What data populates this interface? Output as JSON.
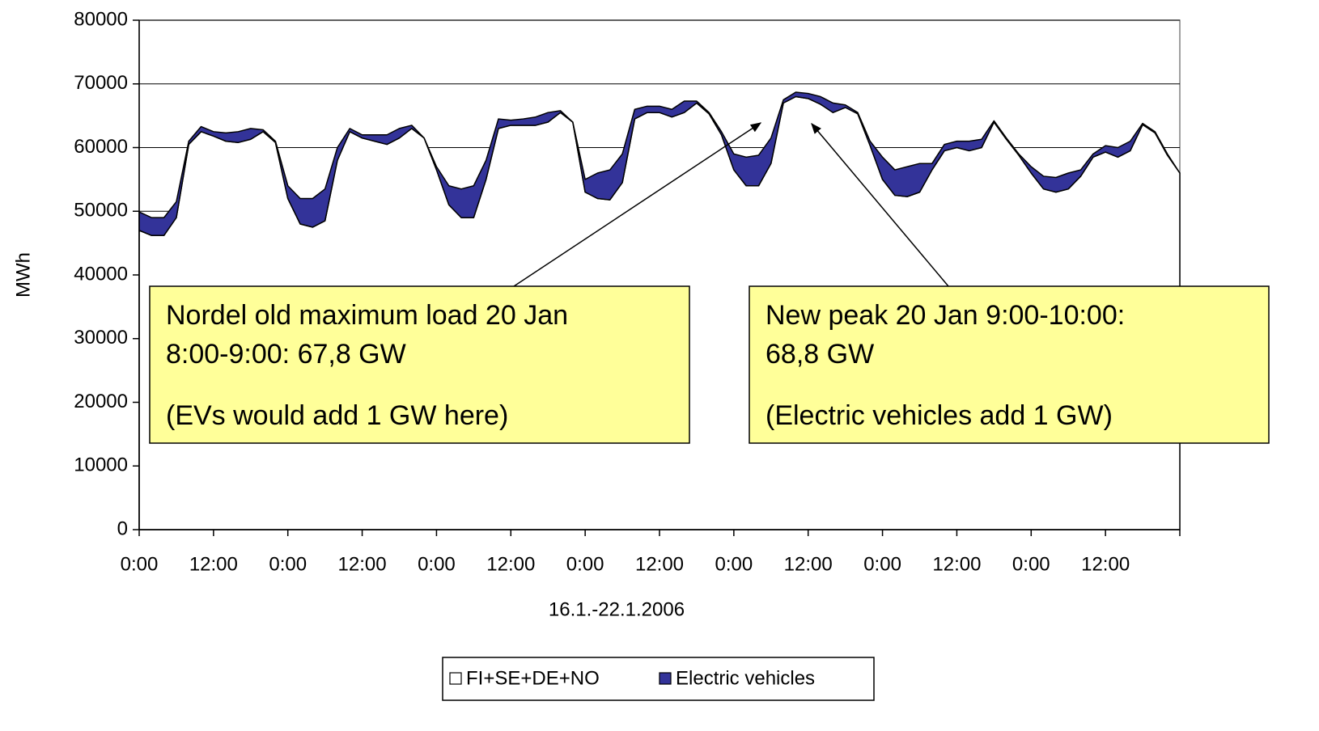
{
  "chart_data": {
    "type": "stacked-area",
    "x_label": "16.1.-22.1.2006",
    "y_label": "MWh",
    "categories": [
      "0:00",
      null,
      null,
      null,
      null,
      null,
      "12:00",
      null,
      null,
      null,
      null,
      null,
      "0:00",
      null,
      null,
      null,
      null,
      null,
      "12:00",
      null,
      null,
      null,
      null,
      null,
      "0:00",
      null,
      null,
      null,
      null,
      null,
      "12:00",
      null,
      null,
      null,
      null,
      null,
      "0:00",
      null,
      null,
      null,
      null,
      null,
      "12:00",
      null,
      null,
      null,
      null,
      null,
      "0:00",
      null,
      null,
      null,
      null,
      null,
      "12:00",
      null,
      null,
      null,
      null,
      null,
      "0:00",
      null,
      null,
      null,
      null,
      null,
      "12:00",
      null,
      null,
      null,
      null,
      null,
      "0:00",
      null,
      null,
      null,
      null,
      null,
      "12:00",
      null,
      null,
      null,
      null,
      null,
      null
    ],
    "series": [
      {
        "name": "FI+SE+DE+NO",
        "color": "#ffffff",
        "values": [
          47000,
          46200,
          46200,
          49000,
          60500,
          62500,
          61800,
          61000,
          60800,
          61300,
          62500,
          60800,
          52000,
          48000,
          47500,
          48500,
          58000,
          62500,
          61500,
          61000,
          60500,
          61500,
          63000,
          61500,
          56500,
          51000,
          49000,
          49000,
          55000,
          63000,
          63500,
          63500,
          63500,
          64000,
          65500,
          64000,
          53000,
          52000,
          51800,
          54500,
          64500,
          65500,
          65500,
          64800,
          65500,
          67000,
          65300,
          62000,
          56500,
          54000,
          54000,
          57500,
          67000,
          68000,
          67700,
          66800,
          65500,
          66300,
          65300,
          60300,
          55000,
          52500,
          52300,
          53000,
          56500,
          59500,
          60000,
          59500,
          60000,
          64000,
          61300,
          58800,
          56000,
          53500,
          53000,
          53500,
          55500,
          58500,
          59300,
          58500,
          59500,
          63600,
          62300,
          58800,
          56000
        ]
      },
      {
        "name": "Electric vehicles",
        "color": "#333399",
        "values": [
          2900,
          2800,
          2800,
          2500,
          500,
          800,
          700,
          1300,
          1700,
          1700,
          300,
          200,
          2000,
          4000,
          4500,
          5000,
          2000,
          500,
          500,
          1000,
          1500,
          1500,
          500,
          0,
          500,
          3000,
          4500,
          5000,
          3000,
          1500,
          800,
          1000,
          1300,
          1500,
          300,
          0,
          2000,
          4000,
          4700,
          4500,
          1500,
          1000,
          1000,
          1200,
          1800,
          300,
          200,
          500,
          2500,
          4500,
          4800,
          4000,
          500,
          700,
          800,
          1200,
          1500,
          400,
          200,
          700,
          3500,
          4000,
          4700,
          4500,
          1000,
          1000,
          1000,
          1500,
          1300,
          200,
          200,
          200,
          1000,
          2000,
          2300,
          2500,
          1000,
          500,
          1000,
          1500,
          1500,
          200,
          200,
          200,
          0
        ]
      }
    ],
    "ylim": [
      0,
      80000
    ],
    "yticks": [
      0,
      10000,
      20000,
      30000,
      40000,
      50000,
      60000,
      70000,
      80000
    ],
    "grid": true,
    "legend": "bottom",
    "annotations": [
      {
        "lines": [
          "Nordel old maximum load 20 Jan",
          "8:00-9:00: 67,8 GW",
          "(EVs would add 1 GW here)"
        ]
      },
      {
        "lines": [
          "New peak 20 Jan 9:00-10:00:",
          "68,8 GW",
          "(Electric vehicles add 1 GW)"
        ]
      }
    ]
  }
}
